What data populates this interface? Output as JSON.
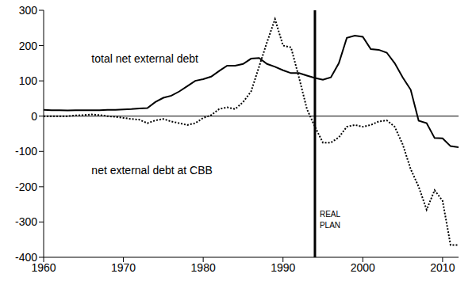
{
  "chart_data": {
    "type": "line",
    "x": [
      1960,
      1961,
      1962,
      1963,
      1964,
      1965,
      1966,
      1967,
      1968,
      1969,
      1970,
      1971,
      1972,
      1973,
      1974,
      1975,
      1976,
      1977,
      1978,
      1979,
      1980,
      1981,
      1982,
      1983,
      1984,
      1985,
      1986,
      1987,
      1988,
      1989,
      1990,
      1991,
      1992,
      1993,
      1994,
      1995,
      1996,
      1997,
      1998,
      1999,
      2000,
      2001,
      2002,
      2003,
      2004,
      2005,
      2006,
      2007,
      2008,
      2009,
      2010,
      2011,
      2012
    ],
    "series": [
      {
        "name": "total net external debt",
        "color": "#000000",
        "line_style": "solid",
        "label_x": 1966,
        "label_y": 163,
        "values": [
          18,
          17,
          17,
          16,
          17,
          17,
          17,
          17,
          18,
          18,
          19,
          20,
          22,
          23,
          40,
          52,
          58,
          70,
          85,
          100,
          105,
          112,
          128,
          143,
          143,
          148,
          163,
          165,
          148,
          140,
          130,
          122,
          122,
          115,
          108,
          103,
          110,
          150,
          222,
          228,
          225,
          190,
          188,
          180,
          150,
          110,
          75,
          -13,
          -20,
          -62,
          -63,
          -85,
          -88
        ]
      },
      {
        "name": "net external debt at CBB",
        "color": "#000000",
        "line_style": "dotted",
        "label_x": 1966,
        "label_y": -154,
        "values": [
          0,
          0,
          0,
          0,
          2,
          3,
          5,
          3,
          0,
          -2,
          -5,
          -8,
          -10,
          -20,
          -12,
          -8,
          -15,
          -20,
          -25,
          -20,
          -5,
          3,
          20,
          25,
          20,
          40,
          70,
          140,
          210,
          275,
          200,
          195,
          110,
          20,
          -30,
          -75,
          -75,
          -60,
          -30,
          -25,
          -30,
          -25,
          -15,
          -12,
          -30,
          -80,
          -150,
          -200,
          -265,
          -210,
          -240,
          -365,
          -365
        ]
      }
    ],
    "xlim": [
      1960,
      2012
    ],
    "xticks": [
      1960,
      1970,
      1980,
      1990,
      2000,
      2010
    ],
    "ylim": [
      -400,
      300
    ],
    "yticks": [
      -400,
      -300,
      -200,
      -100,
      0,
      100,
      200,
      300
    ],
    "grid": false,
    "reference_lines": [
      {
        "y": 0
      },
      {
        "x": 1994,
        "label": "REAL PLAN",
        "label_y": -285
      }
    ]
  }
}
